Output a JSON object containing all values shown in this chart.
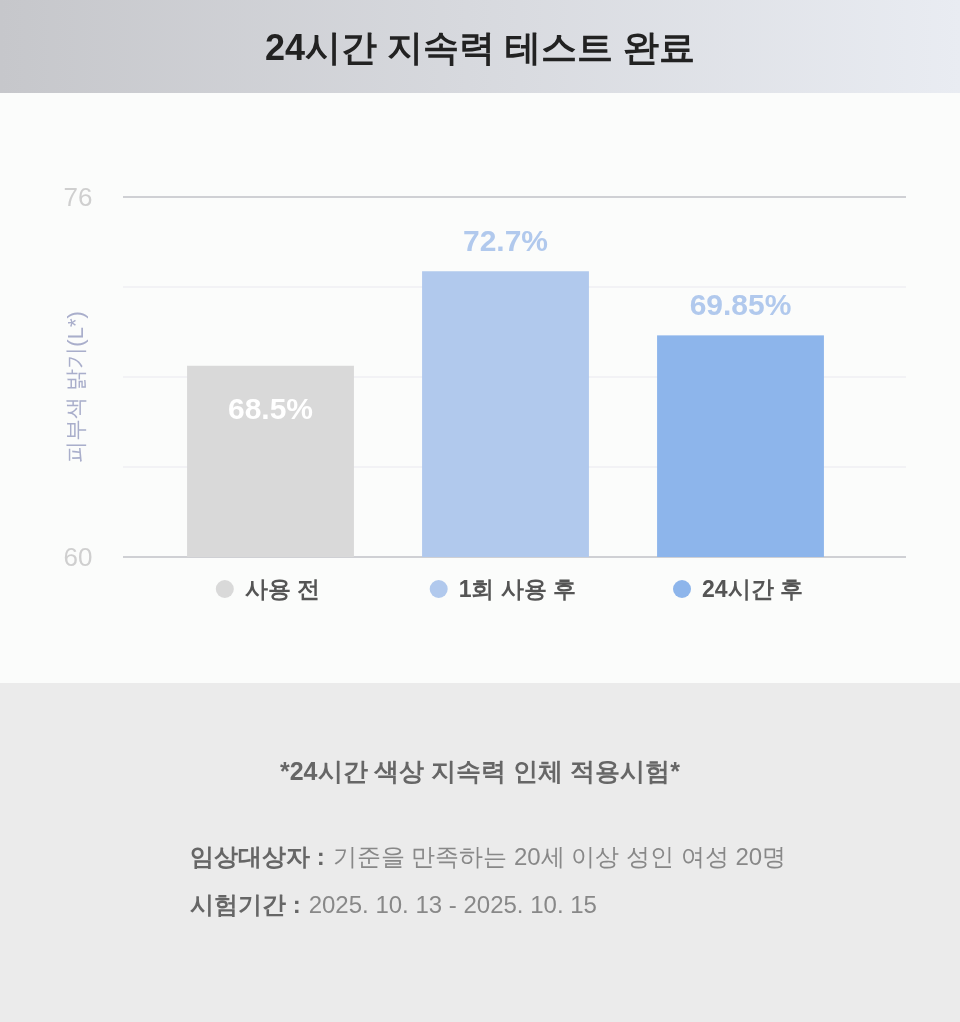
{
  "chart_data": {
    "type": "bar",
    "title": "24시간 지속력 테스트 완료",
    "ylabel": "피부색 밝기(L*)",
    "categories": [
      "사용 전",
      "1회 사용 후",
      "24시간 후"
    ],
    "values": [
      68.5,
      72.7,
      69.85
    ],
    "colors": [
      "#d9d9d9",
      "#b1c9ed",
      "#8db5eb"
    ],
    "value_labels": [
      "68.5%",
      "72.7%",
      "69.85%"
    ],
    "ylim": [
      60,
      76
    ],
    "yticks": [
      60,
      {
        "value": 64,
        "label": null
      },
      {
        "value": 68,
        "label": null
      },
      {
        "value": 72,
        "label": null
      },
      76
    ],
    "grid": "y",
    "annotations": [
      "*24시간 색상 지속력 인체 적용시험*",
      "임상대상자 : 기준을 만족하는 20세 이상 성인 여성 20명",
      "시험기간 : 2025. 10. 13 - 2025. 10. 15"
    ]
  }
}
